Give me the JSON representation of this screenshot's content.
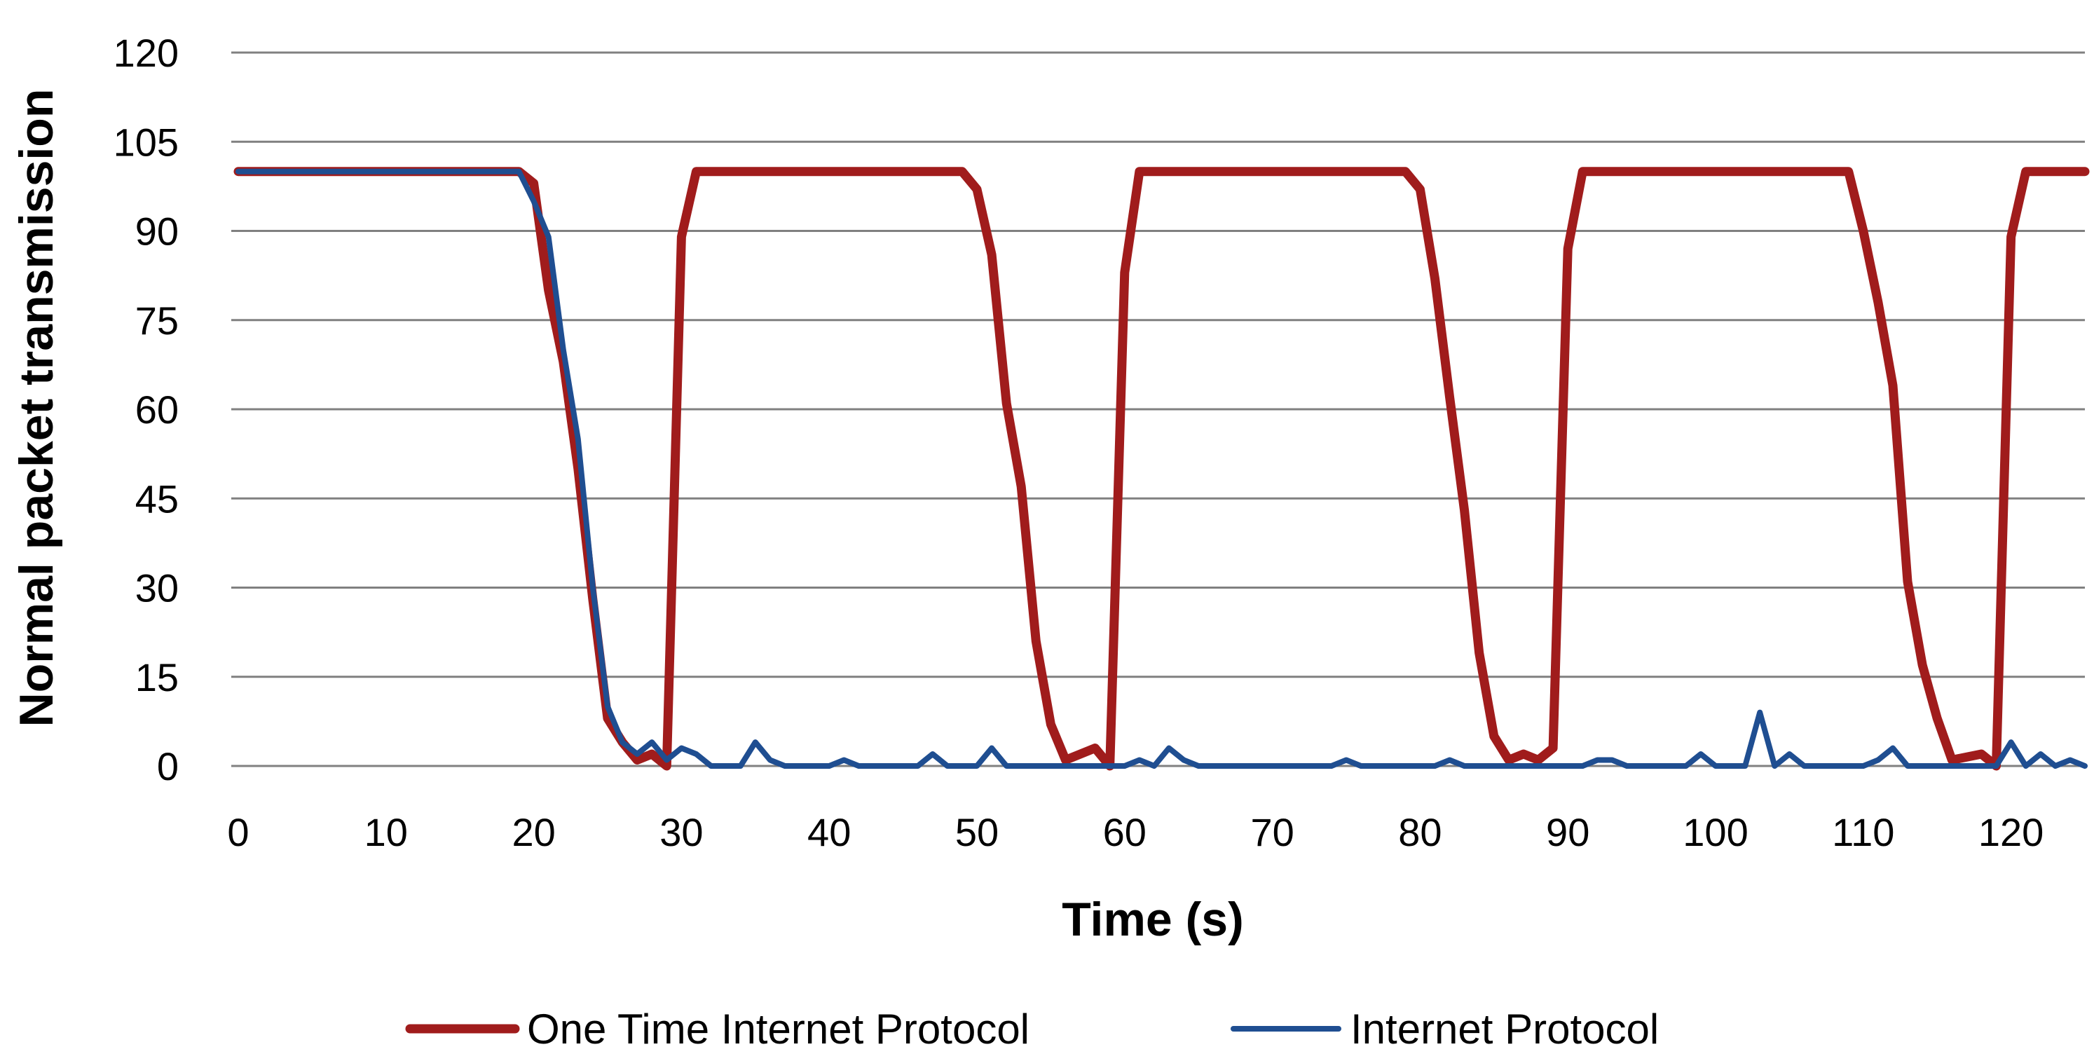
{
  "chart_data": {
    "type": "line",
    "title": "",
    "xlabel": "Time (s)",
    "ylabel": "Normal packet transmission",
    "xlim": [
      0,
      125
    ],
    "ylim": [
      0,
      120
    ],
    "xticks": [
      0,
      10,
      20,
      30,
      40,
      50,
      60,
      70,
      80,
      90,
      100,
      110,
      120
    ],
    "yticks": [
      0,
      15,
      30,
      45,
      60,
      75,
      90,
      105,
      120
    ],
    "grid": "horizontal",
    "legend_position": "bottom",
    "series": [
      {
        "name": "One Time Internet Protocol",
        "color": "#A01C1C",
        "x": [
          0,
          19,
          20,
          21,
          22,
          23,
          24,
          25,
          26,
          27,
          28,
          29,
          30,
          31,
          49,
          50,
          51,
          52,
          53,
          54,
          55,
          56,
          58,
          59,
          60,
          61,
          79,
          80,
          81,
          82,
          83,
          84,
          85,
          86,
          87,
          88,
          89,
          90,
          91,
          109,
          110,
          111,
          112,
          113,
          114,
          115,
          116,
          118,
          119,
          120,
          121,
          125
        ],
        "y": [
          100,
          100,
          98,
          80,
          68,
          50,
          28,
          8,
          4,
          1,
          2,
          0,
          89,
          100,
          100,
          97,
          86,
          61,
          47,
          21,
          7,
          1,
          3,
          0,
          83,
          100,
          100,
          97,
          82,
          62,
          43,
          19,
          5,
          1,
          2,
          1,
          3,
          87,
          100,
          100,
          90,
          78,
          64,
          31,
          17,
          8,
          1,
          2,
          0,
          89,
          100,
          100
        ]
      },
      {
        "name": "Internet Protocol",
        "color": "#1F4E91",
        "x": [
          0,
          19,
          20,
          21,
          22,
          23,
          24,
          25,
          26,
          27,
          28,
          29,
          30,
          31,
          32,
          33,
          34,
          35,
          36,
          37,
          40,
          41,
          42,
          46,
          47,
          48,
          50,
          51,
          52,
          60,
          61,
          62,
          63,
          64,
          65,
          74,
          75,
          76,
          81,
          82,
          83,
          91,
          92,
          93,
          94,
          98,
          99,
          100,
          102,
          103,
          104,
          105,
          106,
          110,
          111,
          112,
          113,
          119,
          120,
          121,
          122,
          123,
          124,
          125
        ],
        "y": [
          100,
          100,
          95,
          89,
          70,
          55,
          30,
          10,
          4,
          2,
          4,
          1,
          3,
          2,
          0,
          0,
          0,
          4,
          1,
          0,
          0,
          1,
          0,
          0,
          2,
          0,
          0,
          3,
          0,
          0,
          1,
          0,
          3,
          1,
          0,
          0,
          1,
          0,
          0,
          1,
          0,
          0,
          1,
          1,
          0,
          0,
          2,
          0,
          0,
          9,
          0,
          2,
          0,
          0,
          1,
          3,
          0,
          0,
          4,
          0,
          2,
          0,
          1,
          0
        ]
      }
    ]
  }
}
